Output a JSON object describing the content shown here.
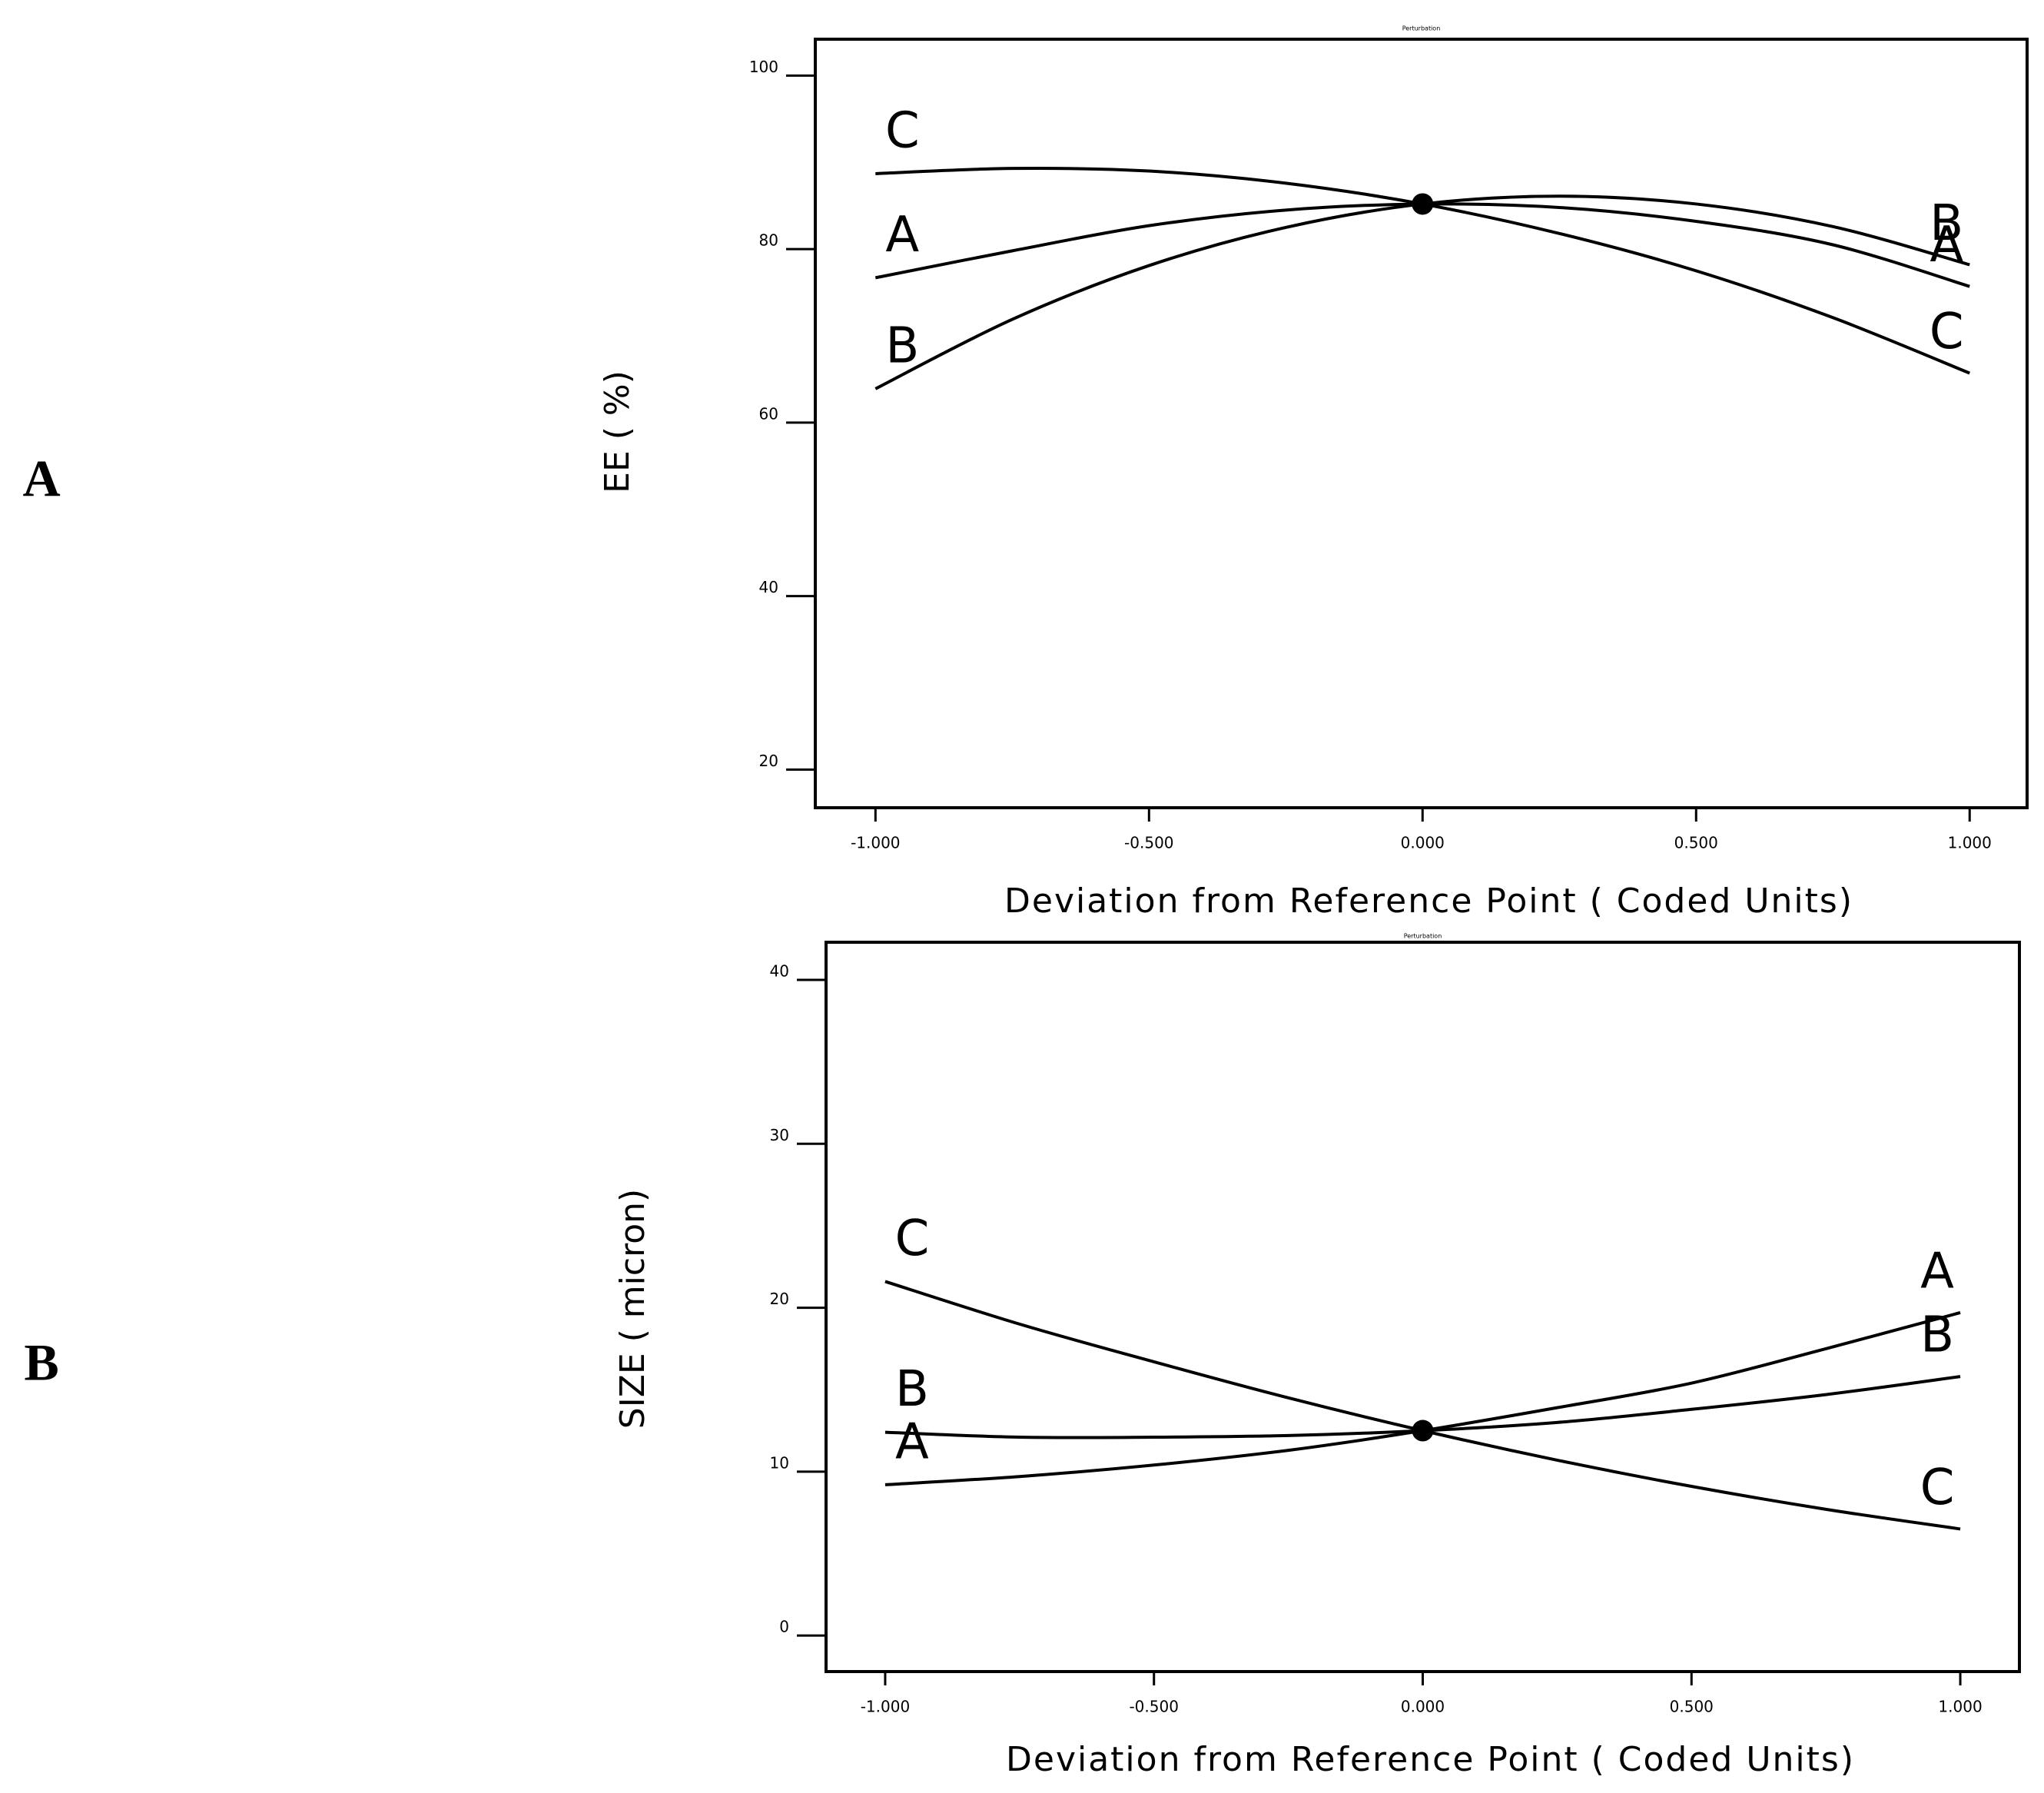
{
  "chart_data": [
    {
      "type": "line",
      "panel_label": "A",
      "title": "Perturbation",
      "x_label": "Deviation from Reference Point (   Coded Units)",
      "y_label": "EE (  %)",
      "x": [
        -1,
        -0.75,
        -0.5,
        -0.25,
        0,
        0.25,
        0.5,
        0.75,
        1
      ],
      "series": [
        {
          "name": "A",
          "color": "#000000",
          "values": [
            76.7,
            79.8,
            82.7,
            84.5,
            85.2,
            84.8,
            83.2,
            80.5,
            75.7
          ]
        },
        {
          "name": "B",
          "color": "#000000",
          "values": [
            63.9,
            71.9,
            78.1,
            82.5,
            85.2,
            86.1,
            85.2,
            82.6,
            78.2
          ]
        },
        {
          "name": "C",
          "color": "#000000",
          "values": [
            88.7,
            89.3,
            89.0,
            87.6,
            85.2,
            81.8,
            77.5,
            72.1,
            65.7
          ]
        }
      ],
      "xlim": [
        -1.11,
        1.105
      ],
      "ylim": [
        15.6,
        104.2
      ],
      "xticks": [
        {
          "value": -1,
          "label": "-1.000"
        },
        {
          "value": -0.5,
          "label": "-0.500"
        },
        {
          "value": 0,
          "label": "0.000"
        },
        {
          "value": 0.5,
          "label": "0.500"
        },
        {
          "value": 1,
          "label": "1.000"
        }
      ],
      "yticks": [
        20,
        40,
        60,
        80,
        100
      ]
    },
    {
      "type": "line",
      "panel_label": "B",
      "title": "Perturbation",
      "x_label": "Deviation from Reference Point (   Coded Units)",
      "y_label": "SIZE (  micron)",
      "x": [
        -1,
        -0.75,
        -0.5,
        -0.25,
        0,
        0.25,
        0.5,
        0.75,
        1
      ],
      "series": [
        {
          "name": "A",
          "color": "#000000",
          "values": [
            9.2,
            9.7,
            10.4,
            11.3,
            12.5,
            13.9,
            15.4,
            17.5,
            19.7
          ]
        },
        {
          "name": "B",
          "color": "#000000",
          "values": [
            12.4,
            12.1,
            12.1,
            12.2,
            12.5,
            13.0,
            13.8,
            14.7,
            15.8
          ]
        },
        {
          "name": "C",
          "color": "#000000",
          "values": [
            21.6,
            19.0,
            16.7,
            14.5,
            12.5,
            10.7,
            9.1,
            7.7,
            6.5
          ]
        }
      ],
      "xlim": [
        -1.11,
        1.11
      ],
      "ylim": [
        -2.2,
        42.3
      ],
      "xticks": [
        {
          "value": -1,
          "label": "-1.000"
        },
        {
          "value": -0.5,
          "label": "-0.500"
        },
        {
          "value": 0,
          "label": "0.000"
        },
        {
          "value": 0.5,
          "label": "0.500"
        },
        {
          "value": 1,
          "label": "1.000"
        }
      ],
      "yticks": [
        0,
        10,
        20,
        30,
        40
      ]
    }
  ]
}
